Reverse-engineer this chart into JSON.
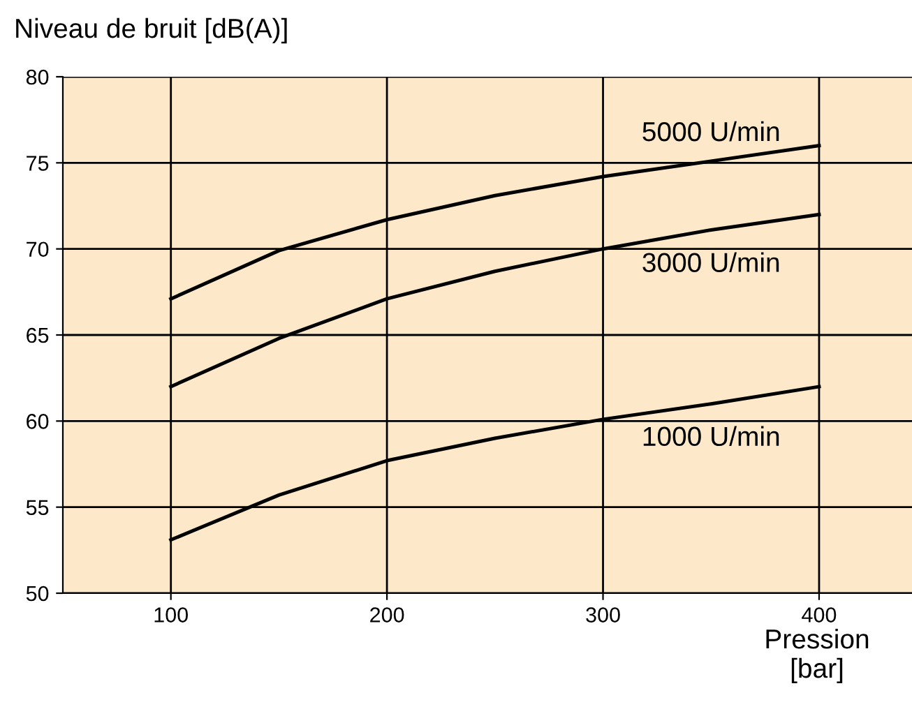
{
  "chart_data": {
    "type": "line",
    "xlabel": "Pression\n[bar]",
    "ylabel": "Niveau de bruit [dB(A)]",
    "xlim": [
      50,
      443
    ],
    "xticks": [
      100,
      200,
      300,
      400
    ],
    "ylim": [
      50,
      80
    ],
    "yticks": [
      50,
      55,
      60,
      65,
      70,
      75,
      80
    ],
    "grid": true,
    "marker": "none",
    "line_style": "solid",
    "series": [
      {
        "name": "5000 U/min",
        "color": "#000000",
        "x": [
          100,
          150,
          200,
          250,
          300,
          350,
          400
        ],
        "values": [
          67.1,
          69.9,
          71.7,
          73.1,
          74.2,
          75.1,
          76.0
        ]
      },
      {
        "name": "3000 U/min",
        "color": "#000000",
        "x": [
          100,
          150,
          200,
          250,
          300,
          350,
          400
        ],
        "values": [
          62.0,
          64.8,
          67.1,
          68.7,
          70.0,
          71.1,
          72.0
        ]
      },
      {
        "name": "1000 U/min",
        "color": "#000000",
        "x": [
          100,
          150,
          200,
          250,
          300,
          350,
          400
        ],
        "values": [
          53.1,
          55.7,
          57.7,
          59.0,
          60.1,
          61.0,
          62.0
        ]
      }
    ]
  }
}
